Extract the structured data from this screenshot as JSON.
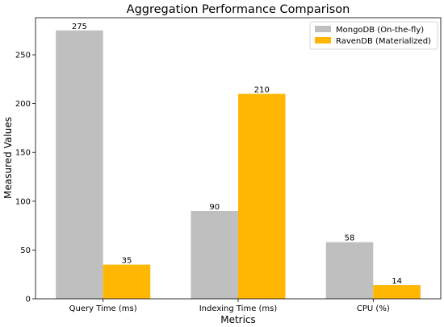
{
  "chart_data": {
    "type": "bar",
    "title": "Aggregation Performance Comparison",
    "xlabel": "Metrics",
    "ylabel": "Measured Values",
    "categories": [
      "Query Time (ms)",
      "Indexing Time (ms)",
      "CPU (%)"
    ],
    "series": [
      {
        "name": "MongoDB (On-the-fly)",
        "values": [
          275,
          90,
          58
        ],
        "color": "#bfbfbf"
      },
      {
        "name": "RavenDB (Materialized)",
        "values": [
          35,
          210,
          14
        ],
        "color": "#ffb703"
      }
    ],
    "ylim": [
      0,
      288
    ],
    "yticks": [
      0,
      50,
      100,
      150,
      200,
      250
    ],
    "grid": false,
    "legend_position": "top-right"
  }
}
